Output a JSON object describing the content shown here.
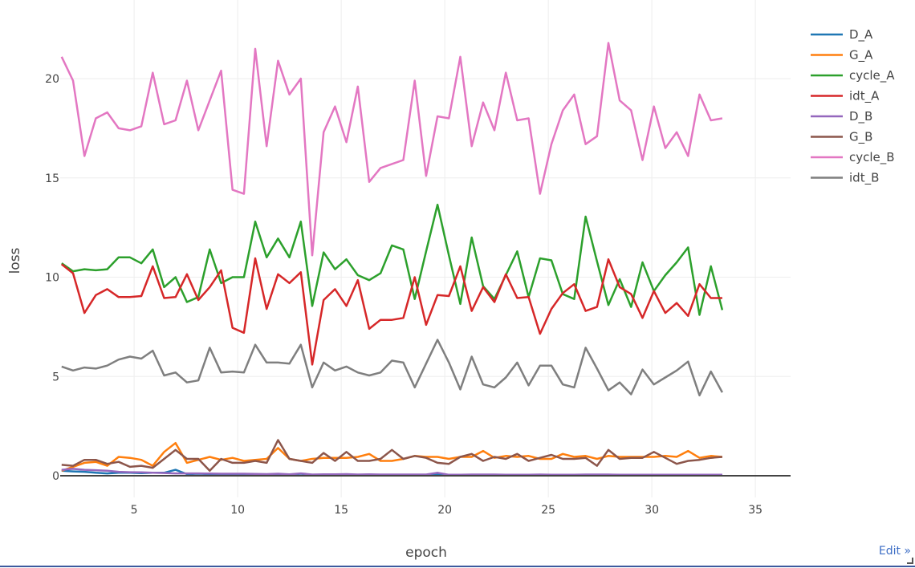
{
  "chart_data": {
    "type": "line",
    "title": "",
    "xlabel": "epoch",
    "ylabel": "loss",
    "xlim": [
      1.43,
      36.7
    ],
    "ylim": [
      -1.09,
      23.96
    ],
    "xticks": [
      5,
      10,
      15,
      20,
      25,
      30,
      35
    ],
    "xtick_labels": [
      "5",
      "10",
      "15",
      "20",
      "25",
      "30",
      "35"
    ],
    "yticks": [
      0,
      5,
      10,
      15,
      20
    ],
    "ytick_labels": [
      "0",
      "5",
      "10",
      "15",
      "20"
    ],
    "grid": true,
    "legend_position": "top-right",
    "x": [
      1.5,
      2.05,
      2.6,
      3.15,
      3.7,
      4.25,
      4.8,
      5.35,
      5.9,
      6.45,
      7,
      7.55,
      8.1,
      8.65,
      9.2,
      9.75,
      10.3,
      10.85,
      11.4,
      11.95,
      12.5,
      13.05,
      13.6,
      14.15,
      14.7,
      15.25,
      15.8,
      16.35,
      16.9,
      17.45,
      18,
      18.55,
      19.1,
      19.65,
      20.2,
      20.75,
      21.3,
      21.85,
      22.4,
      22.95,
      23.5,
      24.05,
      24.6,
      25.15,
      25.7,
      26.25,
      26.8,
      27.35,
      27.9,
      28.45,
      29,
      29.55,
      30.1,
      30.65,
      31.2,
      31.75,
      32.3,
      32.85,
      33.4
    ],
    "series": [
      {
        "name": "D_A",
        "color": "#1f77b4",
        "values": [
          0.25,
          0.22,
          0.2,
          0.15,
          0.12,
          0.15,
          0.15,
          0.13,
          0.15,
          0.15,
          0.3,
          0.08,
          0.1,
          0.08,
          0.07,
          0.06,
          0.05,
          0.05,
          0.06,
          0.08,
          0.05,
          0.1,
          0.04,
          0.05,
          0.04,
          0.05,
          0.04,
          0.06,
          0.04,
          0.05,
          0.04,
          0.04,
          0.03,
          0.05,
          0.03,
          0.04,
          0.04,
          0.04,
          0.05,
          0.03,
          0.04,
          0.03,
          0.04,
          0.04,
          0.05,
          0.04,
          0.03,
          0.03,
          0.04,
          0.03,
          0.03,
          0.03,
          0.03,
          0.04,
          0.03,
          0.03,
          0.03,
          0.03,
          0.03
        ]
      },
      {
        "name": "G_A",
        "color": "#ff7f0e",
        "values": [
          0.25,
          0.45,
          0.65,
          0.7,
          0.5,
          0.95,
          0.9,
          0.8,
          0.5,
          1.2,
          1.65,
          0.65,
          0.8,
          0.95,
          0.8,
          0.9,
          0.75,
          0.8,
          0.85,
          1.4,
          0.85,
          0.75,
          0.85,
          0.9,
          0.9,
          0.9,
          0.95,
          1.1,
          0.75,
          0.75,
          0.85,
          1.0,
          0.95,
          0.95,
          0.85,
          0.95,
          0.95,
          1.25,
          0.9,
          1.0,
          0.95,
          1.0,
          0.85,
          0.85,
          1.1,
          0.95,
          1.0,
          0.85,
          1.0,
          0.95,
          0.95,
          0.95,
          0.95,
          1.0,
          0.95,
          1.25,
          0.9,
          1.0,
          0.95
        ]
      },
      {
        "name": "cycle_A",
        "color": "#2ca02c",
        "values": [
          10.7,
          10.3,
          10.4,
          10.35,
          10.4,
          11.0,
          11.0,
          10.7,
          11.4,
          9.5,
          10.0,
          8.75,
          9.0,
          11.4,
          9.7,
          10.0,
          10.0,
          12.8,
          11.0,
          11.95,
          11.0,
          12.8,
          8.55,
          11.25,
          10.4,
          10.9,
          10.1,
          9.85,
          10.2,
          11.6,
          11.4,
          8.9,
          11.3,
          13.65,
          11.1,
          8.65,
          12.0,
          9.55,
          8.9,
          10.1,
          11.3,
          9.0,
          10.95,
          10.85,
          9.15,
          8.9,
          13.05,
          10.8,
          8.6,
          9.9,
          8.5,
          10.75,
          9.3,
          10.1,
          10.75,
          11.5,
          8.1,
          10.55,
          8.35
        ]
      },
      {
        "name": "idt_A",
        "color": "#d62728",
        "values": [
          10.65,
          10.2,
          8.2,
          9.1,
          9.4,
          9.0,
          9.0,
          9.05,
          10.55,
          8.95,
          9.0,
          10.15,
          8.85,
          9.5,
          10.35,
          7.45,
          7.2,
          10.95,
          8.4,
          10.15,
          9.7,
          10.25,
          5.6,
          8.85,
          9.4,
          8.55,
          9.85,
          7.4,
          7.85,
          7.85,
          7.95,
          10.0,
          7.6,
          9.1,
          9.05,
          10.55,
          8.3,
          9.5,
          8.75,
          10.15,
          8.95,
          9.0,
          7.15,
          8.4,
          9.2,
          9.65,
          8.3,
          8.5,
          10.9,
          9.5,
          9.15,
          7.95,
          9.3,
          8.2,
          8.7,
          8.05,
          9.65,
          8.95,
          8.95
        ]
      },
      {
        "name": "D_B",
        "color": "#9467bd",
        "values": [
          0.3,
          0.35,
          0.3,
          0.28,
          0.25,
          0.2,
          0.18,
          0.17,
          0.15,
          0.14,
          0.12,
          0.12,
          0.12,
          0.11,
          0.1,
          0.1,
          0.1,
          0.09,
          0.08,
          0.1,
          0.07,
          0.12,
          0.06,
          0.07,
          0.07,
          0.08,
          0.06,
          0.07,
          0.06,
          0.06,
          0.06,
          0.06,
          0.06,
          0.15,
          0.05,
          0.05,
          0.06,
          0.06,
          0.06,
          0.05,
          0.05,
          0.05,
          0.06,
          0.05,
          0.05,
          0.05,
          0.06,
          0.06,
          0.06,
          0.05,
          0.05,
          0.05,
          0.05,
          0.05,
          0.05,
          0.05,
          0.05,
          0.05,
          0.05
        ]
      },
      {
        "name": "G_B",
        "color": "#8c564b",
        "values": [
          0.55,
          0.5,
          0.8,
          0.8,
          0.6,
          0.7,
          0.45,
          0.5,
          0.4,
          0.85,
          1.3,
          0.85,
          0.85,
          0.25,
          0.85,
          0.65,
          0.65,
          0.75,
          0.65,
          1.8,
          0.85,
          0.75,
          0.65,
          1.15,
          0.75,
          1.2,
          0.75,
          0.75,
          0.85,
          1.3,
          0.85,
          1.0,
          0.9,
          0.65,
          0.6,
          0.95,
          1.1,
          0.75,
          0.95,
          0.85,
          1.1,
          0.75,
          0.9,
          1.05,
          0.85,
          0.85,
          0.9,
          0.5,
          1.3,
          0.85,
          0.9,
          0.9,
          1.2,
          0.9,
          0.6,
          0.75,
          0.8,
          0.9,
          0.95
        ]
      },
      {
        "name": "cycle_B",
        "color": "#e377c2",
        "values": [
          21.1,
          19.9,
          16.1,
          18.0,
          18.3,
          17.5,
          17.4,
          17.6,
          20.3,
          17.7,
          17.9,
          19.9,
          17.4,
          18.9,
          20.4,
          14.4,
          14.2,
          21.5,
          16.6,
          20.9,
          19.2,
          20.0,
          11.1,
          17.3,
          18.6,
          16.8,
          19.6,
          14.8,
          15.5,
          15.7,
          15.9,
          19.9,
          15.1,
          18.1,
          18.0,
          21.1,
          16.6,
          18.8,
          17.4,
          20.3,
          17.9,
          18.0,
          14.2,
          16.7,
          18.4,
          19.2,
          16.7,
          17.1,
          21.8,
          18.9,
          18.4,
          15.9,
          18.6,
          16.5,
          17.3,
          16.1,
          19.2,
          17.9,
          18.0
        ]
      },
      {
        "name": "idt_B",
        "color": "#7f7f7f",
        "values": [
          5.5,
          5.3,
          5.45,
          5.4,
          5.55,
          5.85,
          6.0,
          5.9,
          6.3,
          5.05,
          5.2,
          4.7,
          4.8,
          6.45,
          5.2,
          5.25,
          5.2,
          6.6,
          5.7,
          5.7,
          5.65,
          6.6,
          4.45,
          5.7,
          5.3,
          5.5,
          5.2,
          5.05,
          5.2,
          5.8,
          5.7,
          4.45,
          5.65,
          6.85,
          5.7,
          4.35,
          6.0,
          4.6,
          4.45,
          4.95,
          5.7,
          4.55,
          5.55,
          5.55,
          4.6,
          4.45,
          6.45,
          5.4,
          4.3,
          4.7,
          4.1,
          5.35,
          4.6,
          4.95,
          5.3,
          5.75,
          4.05,
          5.25,
          4.2
        ]
      }
    ]
  },
  "ui": {
    "edit_link": "Edit »"
  }
}
